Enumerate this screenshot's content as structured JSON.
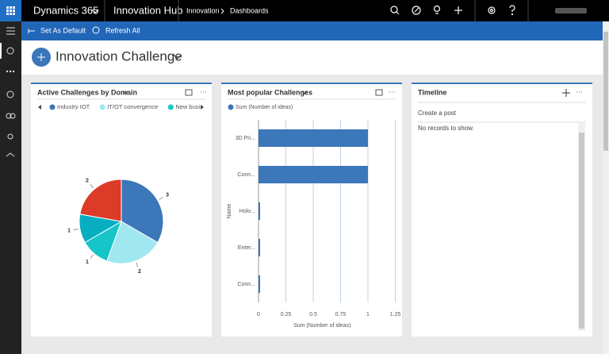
{
  "top_bar": {
    "app": "Dynamics 365",
    "area": "Innovation Hub",
    "breadcrumb": [
      "Innovation",
      "Dashboards"
    ]
  },
  "command_bar": {
    "set_default": "Set As Default",
    "refresh": "Refresh All"
  },
  "dashboard_title": "Innovation Challenge",
  "chart_data": [
    {
      "type": "pie",
      "title": "Active Challenges by Domain",
      "categories": [
        "Industry IOT",
        "IT/OT convergence",
        "New busi",
        null,
        null
      ],
      "values": [
        3,
        2,
        1,
        1,
        2
      ],
      "colors": [
        "#3b77b9",
        "#a0e7ef",
        "#16c5c9",
        "#07aec1",
        "#dc3b28"
      ]
    },
    {
      "type": "bar",
      "title": "Most popular Challenges",
      "orientation": "horizontal",
      "categories": [
        "3D Pri...",
        "Conn...",
        "Holo...",
        "Enter...",
        "Conn..."
      ],
      "series": [
        {
          "name": "Sum (Number of ideas)",
          "color": "#3b77b9",
          "values": [
            1,
            1,
            0,
            0,
            0
          ]
        }
      ],
      "xlim": [
        0,
        1.25
      ],
      "xticks": [
        0,
        0.25,
        0.5,
        0.75,
        1,
        1.25
      ],
      "x_label": "Sum (Number of ideas)",
      "y_label": "Name",
      "grid": true
    }
  ],
  "timeline": {
    "title": "Timeline",
    "create_post": "Create a post",
    "empty": "No records to show."
  }
}
